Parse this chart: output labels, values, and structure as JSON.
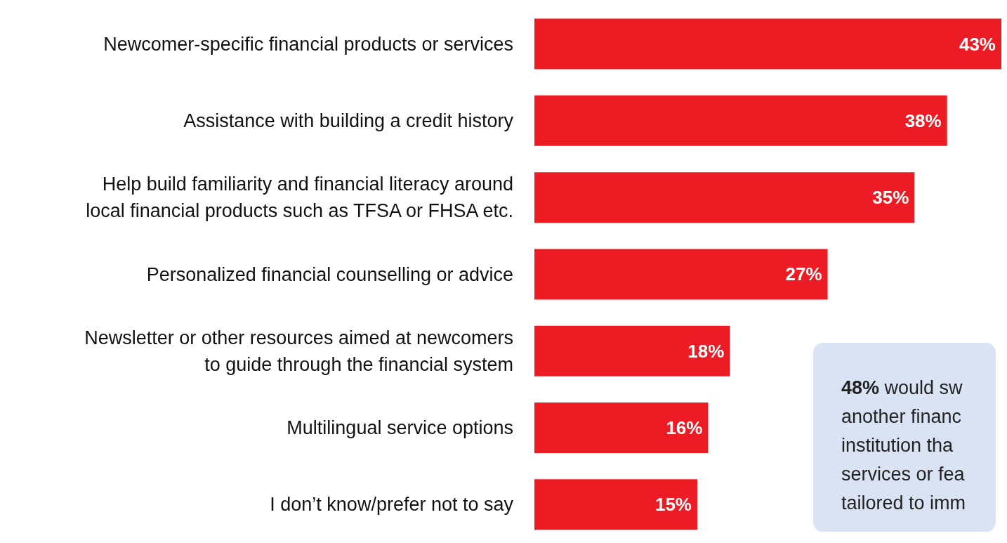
{
  "chart_data": {
    "type": "bar",
    "orientation": "horizontal",
    "value_labels": [
      "43%",
      "38%",
      "35%",
      "27%",
      "18%",
      "16%",
      "15%"
    ],
    "categories": [
      "Newcomer-specific financial products or services",
      "Assistance with building a credit history",
      "Help build familiarity and financial literacy around\nlocal financial products such as TFSA or FHSA etc.",
      "Personalized financial counselling or advice",
      "Newsletter or other resources aimed at newcomers\nto guide through the financial system",
      "Multilingual service options",
      "I don’t know/prefer not to say"
    ],
    "values": [
      43,
      38,
      35,
      27,
      18,
      16,
      15
    ],
    "color": "#ed1c24",
    "annotations": [
      "48% would sw\nanother financ\ninstitution tha\nservices or fea\ntailored to imm"
    ]
  }
}
